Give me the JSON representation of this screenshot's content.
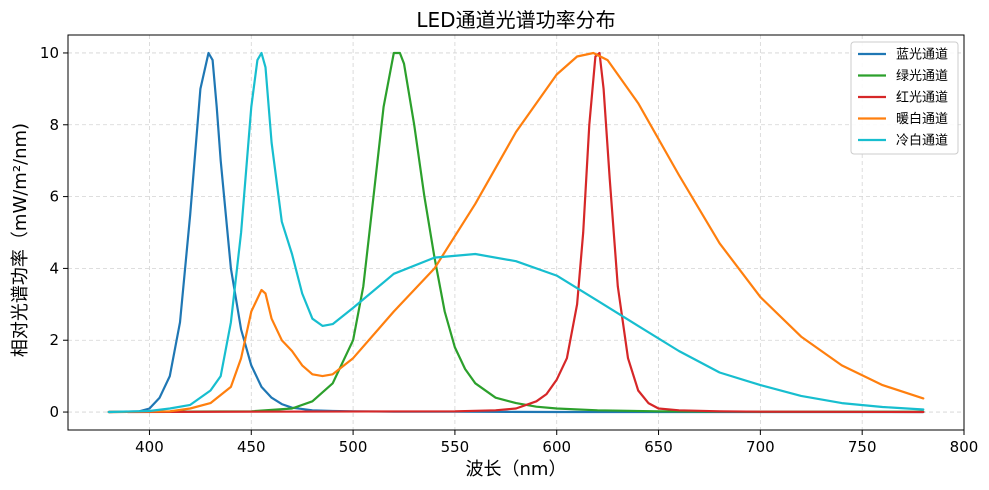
{
  "chart_data": {
    "type": "line",
    "title": "LED通道光谱功率分布",
    "xlabel": "波长（nm）",
    "ylabel": "相对光谱功率（mW/m²/nm)",
    "xlim": [
      360,
      800
    ],
    "ylim": [
      -0.5,
      10.5
    ],
    "xticks": [
      400,
      450,
      500,
      550,
      600,
      650,
      700,
      750,
      800
    ],
    "yticks": [
      0,
      2,
      4,
      6,
      8,
      10
    ],
    "grid": true,
    "legend_position": "top-right",
    "series": [
      {
        "name": "蓝光通道",
        "color": "#1f77b4",
        "x": [
          380,
          395,
          400,
          405,
          410,
          415,
          420,
          425,
          429,
          431,
          433,
          435,
          440,
          445,
          450,
          455,
          460,
          465,
          470,
          480,
          490,
          500,
          520,
          550,
          600,
          650,
          700,
          780
        ],
        "y": [
          0,
          0.02,
          0.1,
          0.4,
          1.0,
          2.5,
          5.5,
          9.0,
          10.0,
          9.8,
          8.5,
          7.0,
          4.0,
          2.3,
          1.3,
          0.7,
          0.4,
          0.22,
          0.12,
          0.05,
          0.03,
          0.02,
          0.01,
          0.01,
          0,
          0,
          0,
          0
        ]
      },
      {
        "name": "绿光通道",
        "color": "#2ca02c",
        "x": [
          380,
          450,
          470,
          480,
          490,
          500,
          505,
          510,
          515,
          520,
          523,
          525,
          530,
          535,
          540,
          545,
          550,
          555,
          560,
          570,
          580,
          590,
          600,
          620,
          650,
          700,
          780
        ],
        "y": [
          0,
          0.02,
          0.1,
          0.3,
          0.8,
          2.0,
          3.5,
          6.0,
          8.5,
          10.0,
          10.0,
          9.7,
          8.0,
          6.0,
          4.3,
          2.8,
          1.8,
          1.2,
          0.8,
          0.4,
          0.25,
          0.15,
          0.1,
          0.05,
          0.02,
          0.01,
          0.01
        ]
      },
      {
        "name": "红光通道",
        "color": "#d62728",
        "x": [
          380,
          550,
          570,
          580,
          590,
          595,
          600,
          605,
          610,
          613,
          616,
          619,
          621,
          623,
          626,
          630,
          635,
          640,
          645,
          650,
          660,
          680,
          700,
          780
        ],
        "y": [
          0,
          0.02,
          0.05,
          0.1,
          0.3,
          0.5,
          0.9,
          1.5,
          3.0,
          5.0,
          8.0,
          9.9,
          10.0,
          9.0,
          6.5,
          3.5,
          1.5,
          0.6,
          0.25,
          0.1,
          0.05,
          0.02,
          0.01,
          0
        ]
      },
      {
        "name": "暖白通道",
        "color": "#ff7f0e",
        "x": [
          380,
          410,
          420,
          430,
          440,
          445,
          450,
          455,
          457,
          460,
          465,
          470,
          475,
          480,
          485,
          490,
          500,
          520,
          540,
          560,
          580,
          600,
          610,
          618,
          625,
          640,
          660,
          680,
          700,
          720,
          740,
          760,
          780
        ],
        "y": [
          0,
          0.02,
          0.1,
          0.25,
          0.7,
          1.5,
          2.8,
          3.4,
          3.3,
          2.6,
          2.0,
          1.7,
          1.3,
          1.05,
          1.0,
          1.05,
          1.5,
          2.8,
          4.0,
          5.8,
          7.8,
          9.4,
          9.9,
          10.0,
          9.8,
          8.6,
          6.6,
          4.7,
          3.2,
          2.1,
          1.3,
          0.75,
          0.38
        ]
      },
      {
        "name": "冷白通道",
        "color": "#17becf",
        "x": [
          380,
          400,
          410,
          420,
          430,
          435,
          440,
          445,
          450,
          453,
          455,
          457,
          460,
          465,
          470,
          475,
          480,
          485,
          490,
          500,
          520,
          540,
          560,
          580,
          600,
          620,
          640,
          660,
          680,
          700,
          720,
          740,
          760,
          780
        ],
        "y": [
          0,
          0.03,
          0.1,
          0.2,
          0.6,
          1.0,
          2.5,
          5.0,
          8.5,
          9.8,
          10.0,
          9.6,
          7.5,
          5.3,
          4.4,
          3.3,
          2.6,
          2.4,
          2.45,
          2.9,
          3.85,
          4.3,
          4.4,
          4.2,
          3.8,
          3.1,
          2.4,
          1.7,
          1.1,
          0.75,
          0.45,
          0.25,
          0.14,
          0.07
        ]
      }
    ]
  }
}
